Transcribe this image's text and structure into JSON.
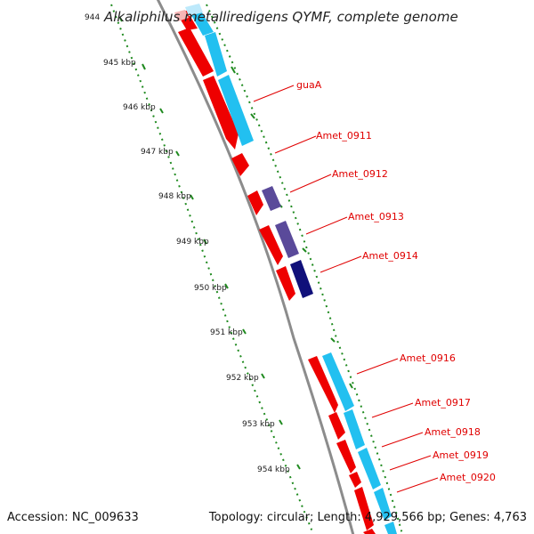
{
  "title": "Alkaliphilus metalliredigens QYMF, complete genome",
  "footer": {
    "accession": "Accession: NC_009633",
    "summary": "Topology: circular; Length: 4,929,566 bp; Genes: 4,763"
  },
  "ruler": [
    "944",
    "945 kbp",
    "946 kbp",
    "947 kbp",
    "948 kbp",
    "949 kbp",
    "950 kbp",
    "951 kbp",
    "952 kbp",
    "953 kbp",
    "954 kbp"
  ],
  "gene_labels": [
    "guaA",
    "Amet_0911",
    "Amet_0912",
    "Amet_0913",
    "Amet_0914",
    "Amet_0916",
    "Amet_0917",
    "Amet_0918",
    "Amet_0919",
    "Amet_0920"
  ],
  "colors": {
    "backbone": "#8c8c8c",
    "cds_forward": "#ee0000",
    "feature_cyan": "#22c0f0",
    "feature_purple": "#5a4a9a",
    "feature_navy": "#10107a",
    "tick_green": "#1f8a1f",
    "label_red": "#e00000",
    "pointer_red": "#e00000"
  }
}
